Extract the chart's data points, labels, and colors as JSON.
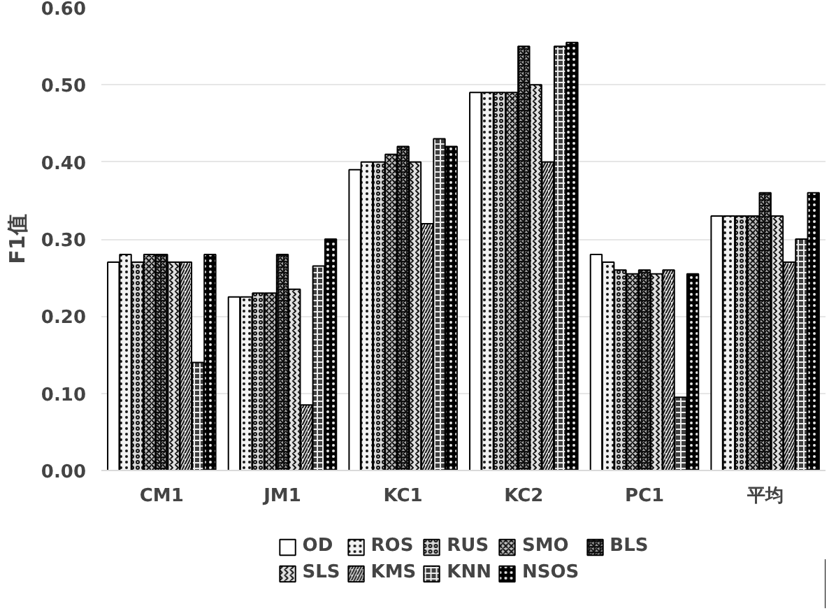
{
  "chart_data": {
    "type": "bar",
    "ylabel": "F1值",
    "categories": [
      "CM1",
      "JM1",
      "KC1",
      "KC2",
      "PC1",
      "平均"
    ],
    "ylim": [
      0,
      0.6
    ],
    "yticks": [
      {
        "value": 0,
        "label": "0.00"
      },
      {
        "value": 0.1,
        "label": "0.10"
      },
      {
        "value": 0.2,
        "label": "0.20"
      },
      {
        "value": 0.3,
        "label": "0.30"
      },
      {
        "value": 0.4,
        "label": "0.40"
      },
      {
        "value": 0.5,
        "label": "0.50"
      },
      {
        "value": 0.6,
        "label": "0.60"
      }
    ],
    "grid": "y",
    "legend": "bottom",
    "series": [
      {
        "name": "OD",
        "color": "#ffffff",
        "values": [
          0.27,
          0.225,
          0.39,
          0.49,
          0.28,
          0.33
        ]
      },
      {
        "name": "ROS",
        "color": "#f2f2f2",
        "values": [
          0.28,
          0.225,
          0.4,
          0.49,
          0.27,
          0.33
        ]
      },
      {
        "name": "RUS",
        "color": "#d9d9d9",
        "values": [
          0.27,
          0.23,
          0.4,
          0.49,
          0.26,
          0.33
        ]
      },
      {
        "name": "SMO",
        "color": "#bfbfbf",
        "values": [
          0.28,
          0.23,
          0.41,
          0.49,
          0.255,
          0.33
        ]
      },
      {
        "name": "BLS",
        "color": "#a6a6a6",
        "values": [
          0.28,
          0.28,
          0.42,
          0.55,
          0.26,
          0.36
        ]
      },
      {
        "name": "SLS",
        "color": "#e0e0e0",
        "values": [
          0.27,
          0.235,
          0.4,
          0.5,
          0.255,
          0.33
        ]
      },
      {
        "name": "KMS",
        "color": "#e6e6e6",
        "values": [
          0.27,
          0.085,
          0.32,
          0.4,
          0.26,
          0.27
        ]
      },
      {
        "name": "KNN",
        "color": "#404040",
        "values": [
          0.14,
          0.265,
          0.43,
          0.55,
          0.095,
          0.3
        ]
      },
      {
        "name": "NSOS",
        "color": "#000000",
        "values": [
          0.28,
          0.3,
          0.42,
          0.555,
          0.255,
          0.36
        ]
      }
    ]
  }
}
